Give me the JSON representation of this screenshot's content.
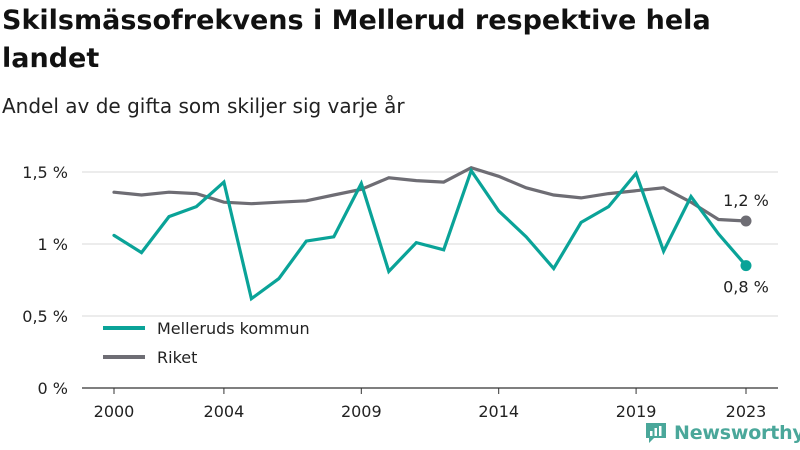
{
  "title": "Skilsmässofrekvens i Mellerud respektive hela landet",
  "subtitle": "Andel av de gifta som skiljer sig varje år",
  "brand": {
    "name": "Newsworthy",
    "icon": "newsworthy-logo-icon",
    "color": "#4aa79a"
  },
  "chart_data": {
    "type": "line",
    "x": [
      2000,
      2001,
      2002,
      2003,
      2004,
      2005,
      2006,
      2007,
      2008,
      2009,
      2010,
      2011,
      2012,
      2013,
      2014,
      2015,
      2016,
      2017,
      2018,
      2019,
      2020,
      2021,
      2022,
      2023
    ],
    "xticks": [
      2000,
      2004,
      2009,
      2014,
      2019,
      2023
    ],
    "xtick_labels": [
      "2000",
      "2004",
      "2009",
      "2014",
      "2019",
      "2023"
    ],
    "ylim": [
      0,
      1.5
    ],
    "yticks": [
      0,
      0.5,
      1,
      1.5
    ],
    "ytick_labels": [
      "0 %",
      "0,5 %",
      "1 %",
      "1,5 %"
    ],
    "grid": true,
    "legend_position": "bottom-left",
    "series": [
      {
        "name": "Melleruds kommun",
        "color": "#0aa398",
        "values": [
          1.06,
          0.94,
          1.19,
          1.26,
          1.43,
          0.62,
          0.76,
          1.02,
          1.05,
          1.42,
          0.81,
          1.01,
          0.96,
          1.51,
          1.23,
          1.05,
          0.83,
          1.15,
          1.26,
          1.49,
          0.95,
          1.33,
          1.07,
          0.85
        ],
        "end_label": "0,8 %"
      },
      {
        "name": "Riket",
        "color": "#6e6d74",
        "values": [
          1.36,
          1.34,
          1.36,
          1.35,
          1.29,
          1.28,
          1.29,
          1.3,
          1.34,
          1.38,
          1.46,
          1.44,
          1.43,
          1.53,
          1.47,
          1.39,
          1.34,
          1.32,
          1.35,
          1.37,
          1.39,
          1.29,
          1.17,
          1.16
        ],
        "end_label": "1,2 %"
      }
    ]
  }
}
